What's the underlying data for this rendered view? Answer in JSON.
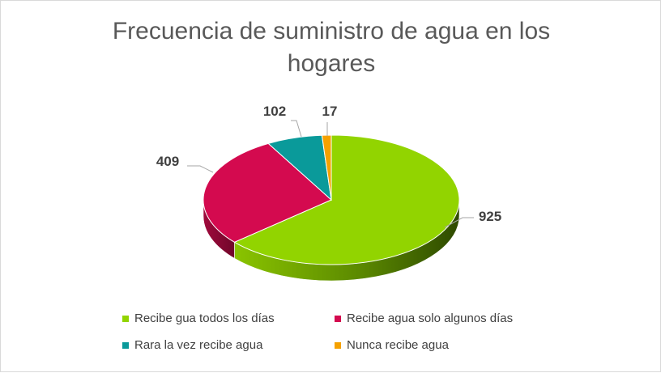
{
  "chart_data": {
    "type": "pie",
    "title": "Frecuencia de suministro de agua en los hogares",
    "legend_position": "bottom",
    "slices": [
      {
        "label": "Recibe gua todos los días",
        "value": 925,
        "color": "#92d400"
      },
      {
        "label": "Recibe agua solo algunos días",
        "value": 409,
        "color": "#d40a4f"
      },
      {
        "label": "Rara la vez recibe agua",
        "value": 102,
        "color": "#0a9a9a"
      },
      {
        "label": "Nunca recibe agua",
        "value": 17,
        "color": "#f5a100"
      }
    ]
  }
}
